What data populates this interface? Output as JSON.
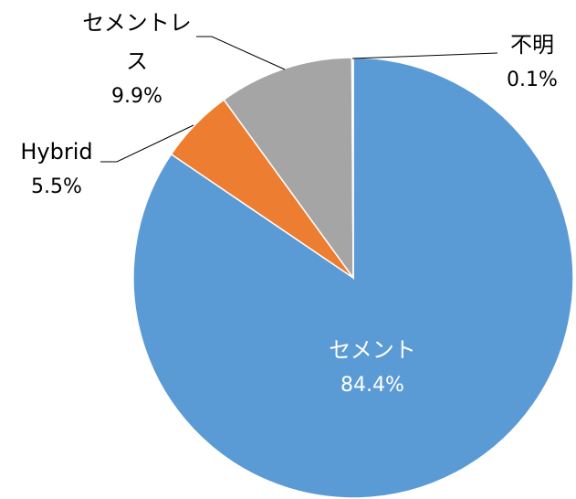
{
  "chart_data": {
    "type": "pie",
    "categories": [
      "セメント",
      "Hybrid",
      "セメントレス",
      "不明"
    ],
    "values": [
      84.4,
      5.5,
      9.9,
      0.1
    ],
    "value_labels": [
      "84.4%",
      "5.5%",
      "9.9%",
      "0.1%"
    ],
    "colors": [
      "#5b9bd5",
      "#ed7d31",
      "#a5a5a5",
      "#ffc000"
    ]
  }
}
